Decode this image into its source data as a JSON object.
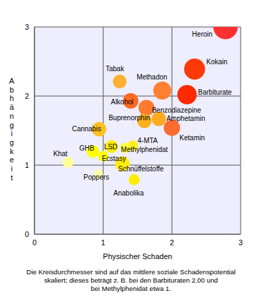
{
  "chart_data": {
    "type": "scatter",
    "x_label": "Physischer Schaden",
    "y_label": "Abhängigkeit",
    "caption": [
      "Die Kreisdurchmesser sind auf das mittlere soziale Schadenspotential",
      "skaliert; dieses beträgt z. B. bei den Barbituraten 2.00 und",
      "bei Methylphenidat etwa 1."
    ],
    "xlim": [
      0,
      3
    ],
    "ylim": [
      0,
      3
    ],
    "xticks": [
      0,
      1,
      2,
      3
    ],
    "yticks": [
      0,
      1,
      2,
      3
    ],
    "grid": true,
    "points": [
      {
        "name": "Heroin",
        "x": 2.78,
        "y": 3.0,
        "size": 2.54,
        "color": "#ff3030"
      },
      {
        "name": "Kokain",
        "x": 2.33,
        "y": 2.39,
        "size": 2.17,
        "color": "#ff3a0a"
      },
      {
        "name": "Barbiturate",
        "x": 2.22,
        "y": 2.02,
        "size": 2.0,
        "color": "#ff2a00"
      },
      {
        "name": "Methadon",
        "x": 1.86,
        "y": 2.08,
        "size": 1.87,
        "color": "#ff8030"
      },
      {
        "name": "Tabak",
        "x": 1.24,
        "y": 2.21,
        "size": 1.42,
        "color": "#ffb030"
      },
      {
        "name": "Alkohol",
        "x": 1.4,
        "y": 1.93,
        "size": 1.6,
        "color": "#ff6a25"
      },
      {
        "name": "Benzodiazepine",
        "x": 1.63,
        "y": 1.83,
        "size": 1.65,
        "color": "#ff7a30"
      },
      {
        "name": "Ketamin",
        "x": 2.0,
        "y": 1.54,
        "size": 1.69,
        "color": "#ff6a30"
      },
      {
        "name": "Amphetamin",
        "x": 1.81,
        "y": 1.67,
        "size": 1.5,
        "color": "#ffaa20"
      },
      {
        "name": "Buprenorphin",
        "x": 1.6,
        "y": 1.64,
        "size": 1.49,
        "color": "#ffb020"
      },
      {
        "name": "Cannabis",
        "x": 0.94,
        "y": 1.52,
        "size": 1.5,
        "color": "#ffc020"
      },
      {
        "name": "Schnüffelstoffe",
        "x": 1.28,
        "y": 1.02,
        "size": 1.52,
        "color": "#ffee10"
      },
      {
        "name": "4-MTA",
        "x": 1.43,
        "y": 1.28,
        "size": 1.1,
        "color": "#ffee20"
      },
      {
        "name": "LSD",
        "x": 1.12,
        "y": 1.27,
        "size": 1.32,
        "color": "#ffee00"
      },
      {
        "name": "Methylphenidat",
        "x": 1.32,
        "y": 1.25,
        "size": 1.06,
        "color": "#ffff40"
      },
      {
        "name": "GHB",
        "x": 0.85,
        "y": 1.2,
        "size": 1.3,
        "color": "#ffff00"
      },
      {
        "name": "Ecstasy",
        "x": 1.0,
        "y": 1.13,
        "size": 1.09,
        "color": "#ffff10"
      },
      {
        "name": "Khat",
        "x": 0.49,
        "y": 1.04,
        "size": 1.13,
        "color": "#ffff99"
      },
      {
        "name": "Poppers",
        "x": 0.93,
        "y": 0.87,
        "size": 0.97,
        "color": "#ffffaa"
      },
      {
        "name": "Anabolika",
        "x": 1.45,
        "y": 0.79,
        "size": 1.13,
        "color": "#ffee00"
      }
    ]
  }
}
